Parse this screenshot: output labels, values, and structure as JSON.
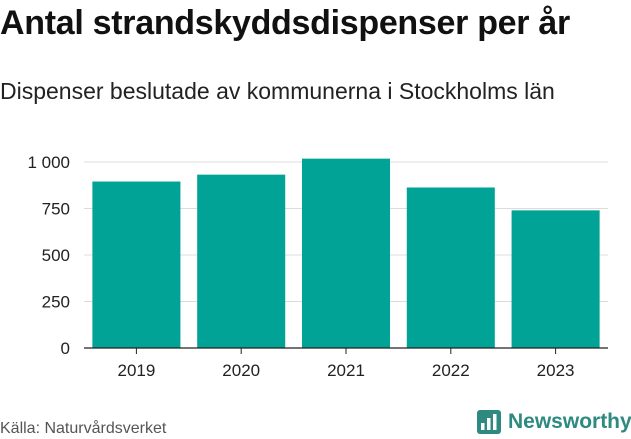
{
  "header": {
    "title": "Antal strandskyddsdispenser per år",
    "subtitle": "Dispenser beslutade av kommunerna i Stockholms län"
  },
  "footer": {
    "source": "Källa: Naturvårdsverket",
    "brand": "Newsworthy",
    "brand_icon": "bar-chart-icon"
  },
  "colors": {
    "bar": "#00a396",
    "grid": "#dcdcdc",
    "axis": "#222222",
    "brand": "#2e8a80"
  },
  "chart_data": {
    "type": "bar",
    "title": "Antal strandskyddsdispenser per år",
    "subtitle": "Dispenser beslutade av kommunerna i Stockholms län",
    "xlabel": "",
    "ylabel": "",
    "categories": [
      "2019",
      "2020",
      "2021",
      "2022",
      "2023"
    ],
    "values": [
      895,
      932,
      1018,
      863,
      740
    ],
    "ylim": [
      0,
      1000
    ],
    "yticks": [
      0,
      250,
      500,
      750,
      1000
    ],
    "ytick_labels": [
      "0",
      "250",
      "500",
      "750",
      "1 000"
    ],
    "grid": true,
    "legend": "none"
  }
}
